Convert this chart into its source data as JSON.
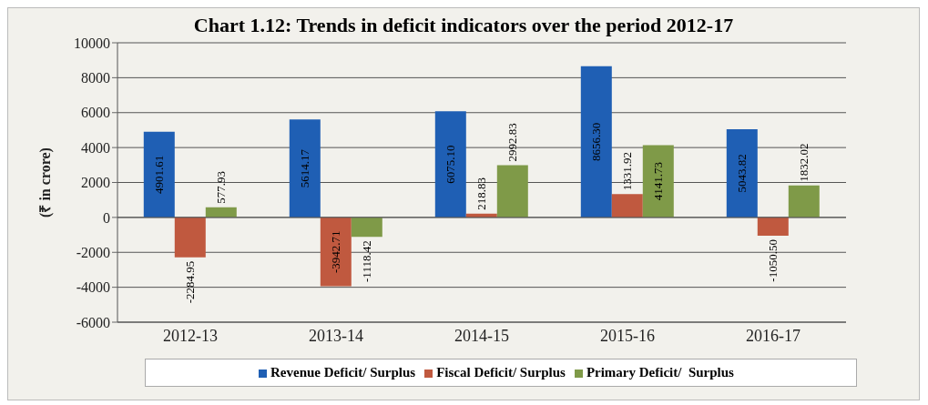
{
  "chart_data": {
    "type": "bar",
    "title": "Chart 1.12: Trends in deficit indicators over the period 2012-17",
    "ylabel": "(₹ in crore)",
    "categories": [
      "2012-13",
      "2013-14",
      "2014-15",
      "2015-16",
      "2016-17"
    ],
    "series": [
      {
        "name": "Revenue Deficit/ Surplus",
        "color": "#1f5fb4",
        "values": [
          4901.61,
          5614.17,
          6075.1,
          8656.3,
          5043.82
        ],
        "value_labels": [
          "4901.61",
          "5614.17",
          "6075.10",
          "8656.30",
          "5043.82"
        ]
      },
      {
        "name": "Fiscal Deficit/ Surplus",
        "color": "#c0593f",
        "values": [
          -2284.95,
          -3942.71,
          218.83,
          1331.92,
          -1050.5
        ],
        "value_labels": [
          "-2284.95",
          "-3942.71",
          "218.83",
          "1331.92",
          "-1050.50"
        ]
      },
      {
        "name": "Primary Deficit/  Surplus",
        "color": "#7f9a48",
        "values": [
          577.93,
          -1118.42,
          2992.83,
          4141.73,
          1832.02
        ],
        "value_labels": [
          "577.93",
          "-1118.42",
          "2992.83",
          "4141.73",
          "1832.02"
        ]
      }
    ],
    "ylim": [
      -6000,
      10000
    ],
    "yticks": [
      -6000,
      -4000,
      -2000,
      0,
      2000,
      4000,
      6000,
      8000,
      10000
    ],
    "grid": "y",
    "legend": "bottom"
  }
}
